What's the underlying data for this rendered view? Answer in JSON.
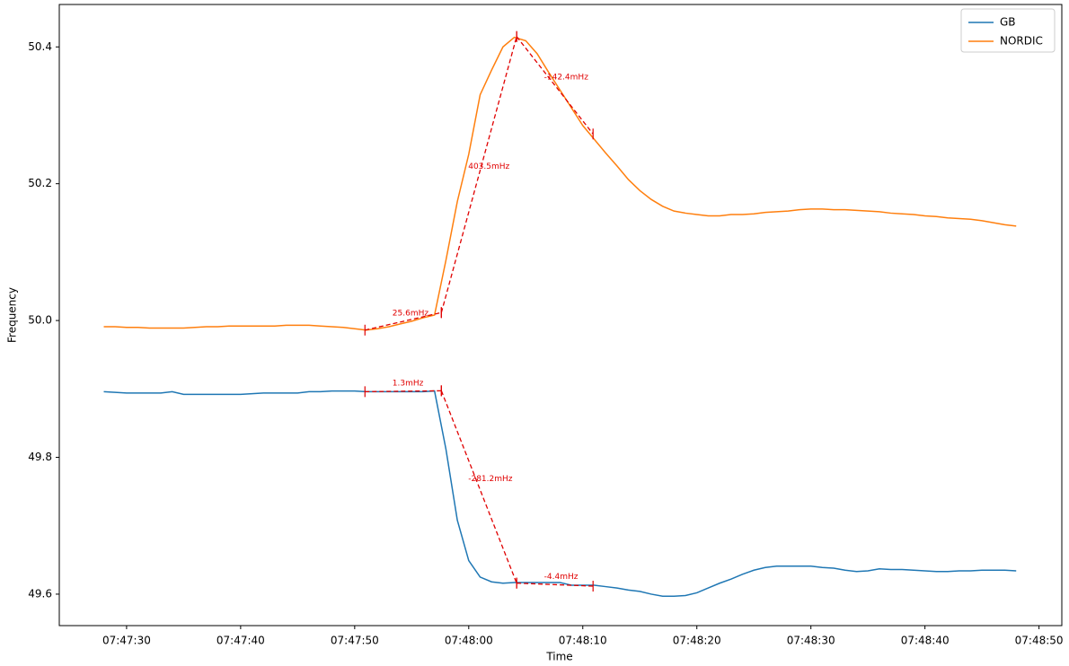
{
  "chart_data": {
    "type": "line",
    "x_label": "Time",
    "y_label": "Frequency",
    "x": [
      "07:47:28",
      "07:47:29",
      "07:47:30",
      "07:47:31",
      "07:47:32",
      "07:47:33",
      "07:47:34",
      "07:47:35",
      "07:47:36",
      "07:47:37",
      "07:47:38",
      "07:47:39",
      "07:47:40",
      "07:47:41",
      "07:47:42",
      "07:47:43",
      "07:47:44",
      "07:47:45",
      "07:47:46",
      "07:47:47",
      "07:47:48",
      "07:47:49",
      "07:47:50",
      "07:47:51",
      "07:47:52",
      "07:47:53",
      "07:47:54",
      "07:47:55",
      "07:47:56",
      "07:47:57",
      "07:47:58",
      "07:47:59",
      "07:48:00",
      "07:48:01",
      "07:48:02",
      "07:48:03",
      "07:48:04",
      "07:48:05",
      "07:48:06",
      "07:48:07",
      "07:48:08",
      "07:48:09",
      "07:48:10",
      "07:48:11",
      "07:48:12",
      "07:48:13",
      "07:48:14",
      "07:48:15",
      "07:48:16",
      "07:48:17",
      "07:48:18",
      "07:48:19",
      "07:48:20",
      "07:48:21",
      "07:48:22",
      "07:48:23",
      "07:48:24",
      "07:48:25",
      "07:48:26",
      "07:48:27",
      "07:48:28",
      "07:48:29",
      "07:48:30",
      "07:48:31",
      "07:48:32",
      "07:48:33",
      "07:48:34",
      "07:48:35",
      "07:48:36",
      "07:48:37",
      "07:48:38",
      "07:48:39",
      "07:48:40",
      "07:48:41",
      "07:48:42",
      "07:48:43",
      "07:48:44",
      "07:48:45",
      "07:48:46",
      "07:48:47",
      "07:48:48"
    ],
    "series": [
      {
        "name": "GB",
        "color": "#1f77b4",
        "values": [
          49.896,
          49.895,
          49.894,
          49.894,
          49.894,
          49.894,
          49.896,
          49.892,
          49.892,
          49.892,
          49.892,
          49.892,
          49.892,
          49.893,
          49.894,
          49.894,
          49.894,
          49.894,
          49.896,
          49.896,
          49.897,
          49.897,
          49.897,
          49.896,
          49.896,
          49.896,
          49.896,
          49.896,
          49.896,
          49.897,
          49.812,
          49.708,
          49.649,
          49.625,
          49.618,
          49.616,
          49.617,
          49.617,
          49.617,
          49.617,
          49.617,
          49.613,
          49.613,
          49.613,
          49.611,
          49.609,
          49.606,
          49.604,
          49.6,
          49.597,
          49.597,
          49.598,
          49.602,
          49.609,
          49.616,
          49.622,
          49.629,
          49.635,
          49.639,
          49.641,
          49.641,
          49.641,
          49.641,
          49.639,
          49.638,
          49.635,
          49.633,
          49.634,
          49.637,
          49.636,
          49.636,
          49.635,
          49.634,
          49.633,
          49.633,
          49.634,
          49.634,
          49.635,
          49.635,
          49.635,
          49.634
        ]
      },
      {
        "name": "NORDIC",
        "color": "#ff7f0e",
        "values": [
          49.991,
          49.991,
          49.99,
          49.99,
          49.989,
          49.989,
          49.989,
          49.989,
          49.99,
          49.991,
          49.991,
          49.992,
          49.992,
          49.992,
          49.992,
          49.992,
          49.993,
          49.993,
          49.993,
          49.992,
          49.991,
          49.99,
          49.988,
          49.986,
          49.988,
          49.991,
          49.995,
          49.999,
          50.004,
          50.008,
          50.088,
          50.174,
          50.243,
          50.33,
          50.366,
          50.4,
          50.414,
          50.409,
          50.39,
          50.363,
          50.337,
          50.311,
          50.285,
          50.265,
          50.245,
          50.226,
          50.206,
          50.19,
          50.177,
          50.167,
          50.16,
          50.157,
          50.155,
          50.153,
          50.153,
          50.155,
          50.155,
          50.156,
          50.158,
          50.159,
          50.16,
          50.162,
          50.163,
          50.163,
          50.162,
          50.162,
          50.161,
          50.16,
          50.159,
          50.157,
          50.156,
          50.155,
          50.153,
          50.152,
          50.15,
          50.149,
          50.148,
          50.146,
          50.143,
          50.14,
          50.138
        ]
      }
    ],
    "annotations": [
      {
        "x": [
          "07:47:50.9",
          "07:47:57.6"
        ],
        "y": [
          49.986,
          50.0116
        ],
        "label": "25.6mHz"
      },
      {
        "x": [
          "07:47:57.6",
          "07:48:04.2"
        ],
        "y": [
          50.0116,
          50.4151
        ],
        "label": "403.5mHz"
      },
      {
        "x": [
          "07:48:04.2",
          "07:48:10.9"
        ],
        "y": [
          50.4151,
          50.2727
        ],
        "label": "-142.4mHz"
      },
      {
        "x": [
          "07:47:50.9",
          "07:47:57.6"
        ],
        "y": [
          49.896,
          49.8973
        ],
        "label": "1.3mHz"
      },
      {
        "x": [
          "07:47:57.6",
          "07:48:04.2"
        ],
        "y": [
          49.8973,
          49.6161
        ],
        "label": "-281.2mHz"
      },
      {
        "x": [
          "07:48:04.2",
          "07:48:10.9"
        ],
        "y": [
          49.6161,
          49.6117
        ],
        "label": "-4.4mHz"
      }
    ],
    "annotation_color": "#e00000",
    "xlim": [
      "07:47:24.1",
      "07:48:52"
    ],
    "xticks": [
      "07:47:30",
      "07:47:40",
      "07:47:50",
      "07:48:00",
      "07:48:10",
      "07:48:20",
      "07:48:30",
      "07:48:40",
      "07:48:50"
    ],
    "ylim": [
      49.554,
      50.462
    ],
    "yticks": [
      49.6,
      49.8,
      {
        "value": 50,
        "label": "50.0"
      },
      50.2,
      50.4
    ],
    "legend": "upper right"
  }
}
